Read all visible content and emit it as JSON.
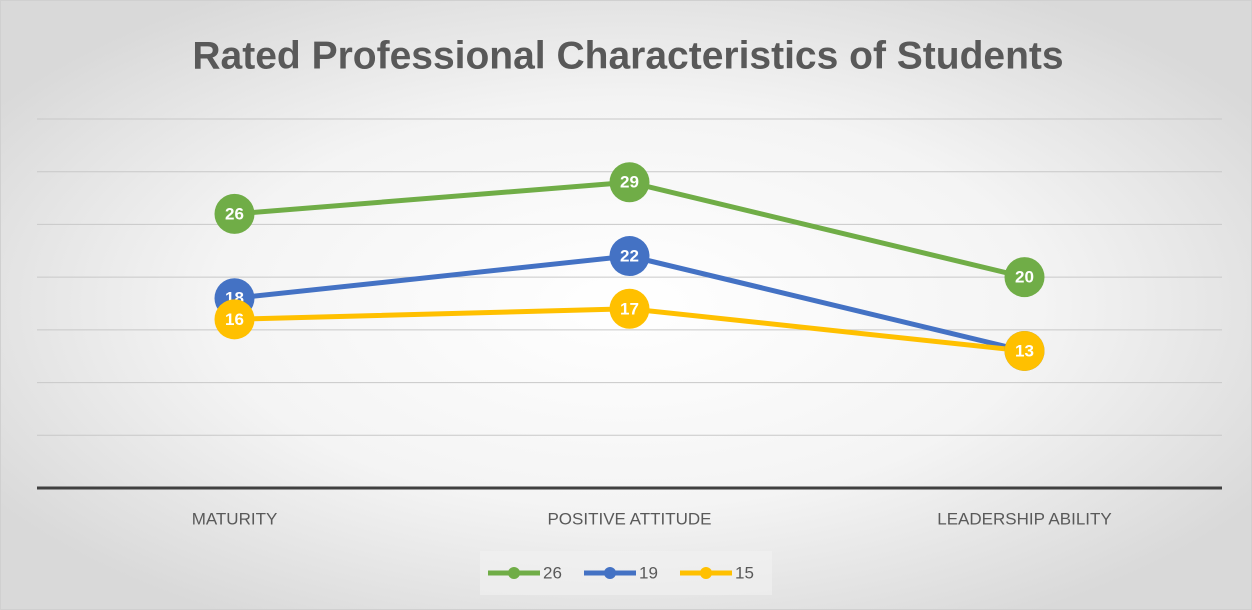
{
  "chart_data": {
    "type": "line",
    "title": "Rated Professional Characteristics of Students",
    "categories": [
      "MATURITY",
      "POSITIVE ATTITUDE",
      "LEADERSHIP ABILITY"
    ],
    "series": [
      {
        "name": "26",
        "color": "#70ad47",
        "values": [
          26,
          29,
          20
        ]
      },
      {
        "name": "19",
        "color": "#4472c4",
        "values": [
          18,
          22,
          13
        ]
      },
      {
        "name": "15",
        "color": "#ffc000",
        "values": [
          16,
          17,
          13
        ]
      }
    ],
    "ylim": [
      0,
      35
    ],
    "yticks": [
      0,
      5,
      10,
      15,
      20,
      25,
      30,
      35
    ],
    "grid": true,
    "legend": "bottom"
  }
}
